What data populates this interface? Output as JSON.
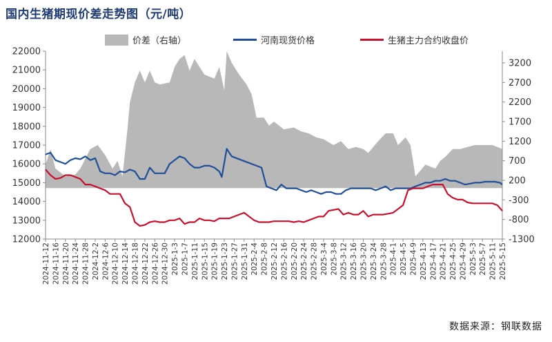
{
  "title": "国内生猪期现价差走势图（元/吨）",
  "source": "数据来源：钢联数据",
  "chart_data": {
    "type": "line",
    "title": "国内生猪期现价差走势图（元/吨）",
    "left_axis": {
      "ylim": [
        12000,
        22000
      ],
      "ticks": [
        12000,
        13000,
        14000,
        15000,
        16000,
        17000,
        18000,
        19000,
        20000,
        21000,
        22000
      ]
    },
    "right_axis": {
      "ylim": [
        -1300,
        3500
      ],
      "ticks": [
        -1300,
        -800,
        -300,
        200,
        700,
        1200,
        1700,
        2200,
        2700,
        3200
      ]
    },
    "x_tick_labels": [
      "2024-11-12",
      "2024-11-16",
      "2024-11-20",
      "2024-11-24",
      "2024-11-28",
      "2024-12-2",
      "2024-12-6",
      "2024-12-10",
      "2024-12-14",
      "2024-12-18",
      "2024-12-22",
      "2024-12-26",
      "2024-12-30",
      "2025-1-3",
      "2025-1-7",
      "2025-1-11",
      "2025-1-15",
      "2025-1-19",
      "2025-1-23",
      "2025-1-27",
      "2025-1-31",
      "2025-2-4",
      "2025-2-8",
      "2025-2-12",
      "2025-2-16",
      "2025-2-20",
      "2025-2-24",
      "2025-2-28",
      "2025-3-4",
      "2025-3-8",
      "2025-3-12",
      "2025-3-16",
      "2025-3-20",
      "2025-3-24",
      "2025-3-28",
      "2025-4-1",
      "2025-4-5",
      "2025-4-9",
      "2025-4-13",
      "2025-4-17",
      "2025-4-21",
      "2025-4-25",
      "2025-4-29",
      "2025-5-3",
      "2025-5-7",
      "2025-5-11",
      "2025-5-15"
    ],
    "series": [
      {
        "name": "价差（右轴）",
        "type": "area",
        "axis": "right",
        "color": "#b8b8b8",
        "x": [
          "2024-11-12",
          "2024-11-14",
          "2024-11-16",
          "2024-11-20",
          "2024-11-24",
          "2024-11-26",
          "2024-11-30",
          "2024-12-3",
          "2024-12-6",
          "2024-12-9",
          "2024-12-11",
          "2024-12-13",
          "2024-12-15",
          "2024-12-16",
          "2024-12-18",
          "2024-12-20",
          "2024-12-22",
          "2024-12-24",
          "2024-12-26",
          "2024-12-28",
          "2025-1-1",
          "2025-1-3",
          "2025-1-5",
          "2025-1-7",
          "2025-1-9",
          "2025-1-11",
          "2025-1-15",
          "2025-1-19",
          "2025-1-21",
          "2025-1-23",
          "2025-1-24",
          "2025-1-26",
          "2025-1-29",
          "2025-2-1",
          "2025-2-3",
          "2025-2-5",
          "2025-2-8",
          "2025-2-10",
          "2025-2-12",
          "2025-2-16",
          "2025-2-20",
          "2025-2-23",
          "2025-2-26",
          "2025-3-1",
          "2025-3-4",
          "2025-3-8",
          "2025-3-11",
          "2025-3-14",
          "2025-3-17",
          "2025-3-20",
          "2025-3-22",
          "2025-3-26",
          "2025-3-29",
          "2025-4-1",
          "2025-4-3",
          "2025-4-6",
          "2025-4-8",
          "2025-4-10",
          "2025-4-14",
          "2025-4-18",
          "2025-4-20",
          "2025-4-22",
          "2025-4-25",
          "2025-4-28",
          "2025-5-1",
          "2025-5-4",
          "2025-5-8",
          "2025-5-11",
          "2025-5-13",
          "2025-5-15"
        ],
        "values": [
          600,
          1000,
          500,
          300,
          350,
          500,
          1000,
          1100,
          850,
          500,
          700,
          300,
          1500,
          2200,
          2700,
          3000,
          2700,
          3000,
          2700,
          2650,
          2700,
          3100,
          3300,
          3400,
          3000,
          3300,
          2900,
          2800,
          3100,
          2500,
          3500,
          3200,
          2900,
          2650,
          2400,
          1800,
          1800,
          1600,
          1700,
          1500,
          1550,
          1450,
          1400,
          1300,
          1250,
          1100,
          1200,
          1000,
          1050,
          1000,
          900,
          1200,
          1400,
          1400,
          1100,
          1300,
          1100,
          300,
          600,
          500,
          700,
          800,
          1000,
          1000,
          1050,
          1100,
          1100,
          1100,
          1050,
          1000
        ]
      },
      {
        "name": "河南现货价格",
        "type": "line",
        "axis": "left",
        "color": "#1f4e99",
        "x": [
          "2024-11-12",
          "2024-11-14",
          "2024-11-16",
          "2024-11-18",
          "2024-11-20",
          "2024-11-22",
          "2024-11-24",
          "2024-11-26",
          "2024-11-28",
          "2024-11-30",
          "2024-12-2",
          "2024-12-4",
          "2024-12-6",
          "2024-12-8",
          "2024-12-10",
          "2024-12-12",
          "2024-12-14",
          "2024-12-16",
          "2024-12-18",
          "2024-12-20",
          "2024-12-22",
          "2024-12-24",
          "2024-12-26",
          "2024-12-28",
          "2024-12-30",
          "2025-1-1",
          "2025-1-3",
          "2025-1-5",
          "2025-1-7",
          "2025-1-9",
          "2025-1-11",
          "2025-1-13",
          "2025-1-15",
          "2025-1-17",
          "2025-1-19",
          "2025-1-21",
          "2025-1-22",
          "2025-1-24",
          "2025-1-26",
          "2025-1-30",
          "2025-2-3",
          "2025-2-5",
          "2025-2-7",
          "2025-2-9",
          "2025-2-11",
          "2025-2-13",
          "2025-2-15",
          "2025-2-17",
          "2025-2-19",
          "2025-2-21",
          "2025-2-23",
          "2025-2-25",
          "2025-2-27",
          "2025-3-1",
          "2025-3-3",
          "2025-3-5",
          "2025-3-7",
          "2025-3-9",
          "2025-3-11",
          "2025-3-13",
          "2025-3-15",
          "2025-3-17",
          "2025-3-19",
          "2025-3-21",
          "2025-3-23",
          "2025-3-25",
          "2025-3-27",
          "2025-3-29",
          "2025-3-31",
          "2025-4-2",
          "2025-4-4",
          "2025-4-6",
          "2025-4-8",
          "2025-4-10",
          "2025-4-12",
          "2025-4-14",
          "2025-4-16",
          "2025-4-18",
          "2025-4-20",
          "2025-4-22",
          "2025-4-24",
          "2025-4-26",
          "2025-4-28",
          "2025-4-30",
          "2025-5-2",
          "2025-5-4",
          "2025-5-6",
          "2025-5-8",
          "2025-5-10",
          "2025-5-12",
          "2025-5-14",
          "2025-5-15"
        ],
        "values": [
          16500,
          16600,
          16200,
          16100,
          16000,
          16200,
          16300,
          16250,
          16400,
          16200,
          16300,
          15600,
          15500,
          15500,
          15400,
          15600,
          15550,
          15700,
          15600,
          15200,
          15200,
          15800,
          15500,
          15500,
          15500,
          16000,
          16200,
          16400,
          16300,
          16000,
          15800,
          15800,
          15900,
          15900,
          15800,
          15600,
          15300,
          16800,
          16400,
          16200,
          16000,
          15900,
          15800,
          14800,
          14700,
          14600,
          14900,
          14700,
          14700,
          14700,
          14600,
          14500,
          14600,
          14500,
          14400,
          14500,
          14500,
          14400,
          14400,
          14600,
          14700,
          14700,
          14700,
          14700,
          14700,
          14600,
          14700,
          14800,
          14600,
          14700,
          14700,
          14700,
          14700,
          14800,
          14900,
          15000,
          15000,
          15100,
          15100,
          15200,
          15100,
          15100,
          15000,
          14900,
          14950,
          15000,
          15000,
          15050,
          15050,
          15050,
          15000,
          14900
        ]
      },
      {
        "name": "生猪主力合约收盘价",
        "type": "line",
        "axis": "left",
        "color": "#c8102e",
        "x": [
          "2024-11-12",
          "2024-11-14",
          "2024-11-16",
          "2024-11-18",
          "2024-11-20",
          "2024-11-22",
          "2024-11-24",
          "2024-11-26",
          "2024-11-28",
          "2024-11-30",
          "2024-12-2",
          "2024-12-4",
          "2024-12-6",
          "2024-12-8",
          "2024-12-10",
          "2024-12-12",
          "2024-12-14",
          "2024-12-16",
          "2024-12-18",
          "2024-12-20",
          "2024-12-22",
          "2024-12-24",
          "2024-12-26",
          "2024-12-28",
          "2024-12-30",
          "2025-1-1",
          "2025-1-3",
          "2025-1-5",
          "2025-1-7",
          "2025-1-9",
          "2025-1-11",
          "2025-1-13",
          "2025-1-15",
          "2025-1-17",
          "2025-1-19",
          "2025-1-21",
          "2025-1-23",
          "2025-1-25",
          "2025-1-27",
          "2025-1-29",
          "2025-1-31",
          "2025-2-2",
          "2025-2-4",
          "2025-2-6",
          "2025-2-8",
          "2025-2-10",
          "2025-2-12",
          "2025-2-14",
          "2025-2-16",
          "2025-2-18",
          "2025-2-20",
          "2025-2-22",
          "2025-2-24",
          "2025-2-26",
          "2025-2-28",
          "2025-3-2",
          "2025-3-4",
          "2025-3-6",
          "2025-3-8",
          "2025-3-10",
          "2025-3-12",
          "2025-3-14",
          "2025-3-16",
          "2025-3-18",
          "2025-3-20",
          "2025-3-22",
          "2025-3-24",
          "2025-3-26",
          "2025-3-28",
          "2025-3-30",
          "2025-4-1",
          "2025-4-3",
          "2025-4-5",
          "2025-4-7",
          "2025-4-9",
          "2025-4-11",
          "2025-4-13",
          "2025-4-15",
          "2025-4-17",
          "2025-4-19",
          "2025-4-21",
          "2025-4-23",
          "2025-4-25",
          "2025-4-27",
          "2025-4-29",
          "2025-5-1",
          "2025-5-3",
          "2025-5-5",
          "2025-5-7",
          "2025-5-9",
          "2025-5-11",
          "2025-5-13",
          "2025-5-15"
        ],
        "values": [
          15700,
          15400,
          15200,
          15250,
          15400,
          15400,
          15300,
          15200,
          14900,
          14900,
          14800,
          14700,
          14600,
          14400,
          14400,
          14400,
          13900,
          13700,
          12900,
          12700,
          12750,
          12900,
          12950,
          12900,
          12900,
          13000,
          13000,
          13100,
          12800,
          12900,
          12900,
          13100,
          13000,
          13000,
          12950,
          13100,
          13100,
          13100,
          13200,
          13300,
          13400,
          13200,
          13000,
          12900,
          12900,
          12900,
          12950,
          12950,
          12950,
          12950,
          12900,
          12950,
          12900,
          13000,
          13100,
          13200,
          13200,
          13500,
          13550,
          13600,
          13300,
          13400,
          13300,
          13300,
          13500,
          13200,
          13300,
          13300,
          13300,
          13350,
          13400,
          13600,
          13800,
          14600,
          14700,
          14700,
          14700,
          14800,
          14900,
          14900,
          14900,
          14400,
          14200,
          14100,
          14100,
          13950,
          13900,
          13900,
          13900,
          13900,
          13900,
          13800,
          13500
        ]
      }
    ],
    "legend_position": "top",
    "grid": false
  }
}
